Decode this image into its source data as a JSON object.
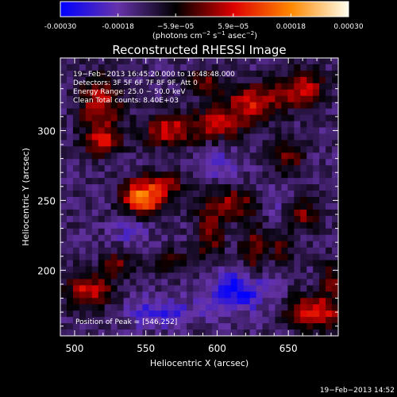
{
  "chart_data": {
    "type": "heatmap",
    "title": "Reconstructed RHESSI Image",
    "xlabel": "Heliocentric X (arcsec)",
    "ylabel": "Heliocentric Y (arcsec)",
    "xlim": [
      490,
      685
    ],
    "ylim": [
      153,
      352
    ],
    "x_ticks": [
      500,
      550,
      600,
      650
    ],
    "y_ticks": [
      200,
      250,
      300
    ],
    "colorbar": {
      "range": [
        -0.0003,
        0.0003
      ],
      "tick_labels": [
        "-0.00030",
        "-0.00018",
        "−5.9e−05",
        "5.9e−05",
        "0.00018",
        "0.00030"
      ],
      "unit_prefix": "(photons cm",
      "unit_exp1": "−2",
      "unit_mid": " s",
      "unit_exp2": "−1",
      "unit_mid2": " asec",
      "unit_exp3": "−2",
      "unit_suffix": ")",
      "colors": [
        "#0000ff",
        "#6633aa",
        "#000000",
        "#dd0000",
        "#ff8800",
        "#ffffee"
      ]
    },
    "annotations": [
      "19−Feb−2013 16:45:20.000 to 16:48:48.000",
      "Detectors: 3F 5F 6F 7F 8F 9F, Att 0",
      "Energy Range: 25.0 − 50.0 keV",
      "Clean     Total counts: 8.40E+03"
    ],
    "peak_label": "Position of Peak = [546,252]",
    "peak": [
      546,
      252
    ],
    "sources": [
      {
        "x": 548,
        "y": 252,
        "sx": 10,
        "sy": 9,
        "amp": 0.0003
      },
      {
        "x": 518,
        "y": 318,
        "sx": 10,
        "sy": 14,
        "amp": 0.00018
      },
      {
        "x": 520,
        "y": 292,
        "sx": 9,
        "sy": 7,
        "amp": 0.00016
      },
      {
        "x": 565,
        "y": 300,
        "sx": 12,
        "sy": 8,
        "amp": 0.00018
      },
      {
        "x": 600,
        "y": 305,
        "sx": 14,
        "sy": 8,
        "amp": 0.00016
      },
      {
        "x": 625,
        "y": 320,
        "sx": 14,
        "sy": 9,
        "amp": 0.00018
      },
      {
        "x": 660,
        "y": 330,
        "sx": 12,
        "sy": 9,
        "amp": 0.00017
      },
      {
        "x": 590,
        "y": 335,
        "sx": 10,
        "sy": 6,
        "amp": 0.00012
      },
      {
        "x": 650,
        "y": 280,
        "sx": 8,
        "sy": 10,
        "amp": 0.00012
      },
      {
        "x": 610,
        "y": 248,
        "sx": 14,
        "sy": 8,
        "amp": 0.00014
      },
      {
        "x": 595,
        "y": 225,
        "sx": 7,
        "sy": 12,
        "amp": 0.00013
      },
      {
        "x": 625,
        "y": 215,
        "sx": 6,
        "sy": 14,
        "amp": 0.00012
      },
      {
        "x": 660,
        "y": 240,
        "sx": 9,
        "sy": 8,
        "amp": 0.00013
      },
      {
        "x": 645,
        "y": 215,
        "sx": 6,
        "sy": 8,
        "amp": 0.0001
      },
      {
        "x": 510,
        "y": 185,
        "sx": 12,
        "sy": 9,
        "amp": 0.00018
      },
      {
        "x": 530,
        "y": 205,
        "sx": 8,
        "sy": 6,
        "amp": 0.00012
      },
      {
        "x": 570,
        "y": 205,
        "sx": 10,
        "sy": 6,
        "amp": 0.0001
      },
      {
        "x": 670,
        "y": 170,
        "sx": 14,
        "sy": 9,
        "amp": 0.0002
      },
      {
        "x": 680,
        "y": 195,
        "sx": 6,
        "sy": 8,
        "amp": 0.00012
      },
      {
        "x": 565,
        "y": 262,
        "sx": 8,
        "sy": 6,
        "amp": 0.00013
      },
      {
        "x": 615,
        "y": 185,
        "sx": 14,
        "sy": 10,
        "amp": -0.00016
      },
      {
        "x": 560,
        "y": 170,
        "sx": 18,
        "sy": 8,
        "amp": -0.0001
      },
      {
        "x": 540,
        "y": 230,
        "sx": 8,
        "sy": 8,
        "amp": -8e-05
      },
      {
        "x": 600,
        "y": 275,
        "sx": 10,
        "sy": 8,
        "amp": -7e-05
      },
      {
        "x": 640,
        "y": 250,
        "sx": 8,
        "sy": 10,
        "amp": -6e-05
      }
    ]
  },
  "footer_date": "19−Feb−2013 14:52"
}
